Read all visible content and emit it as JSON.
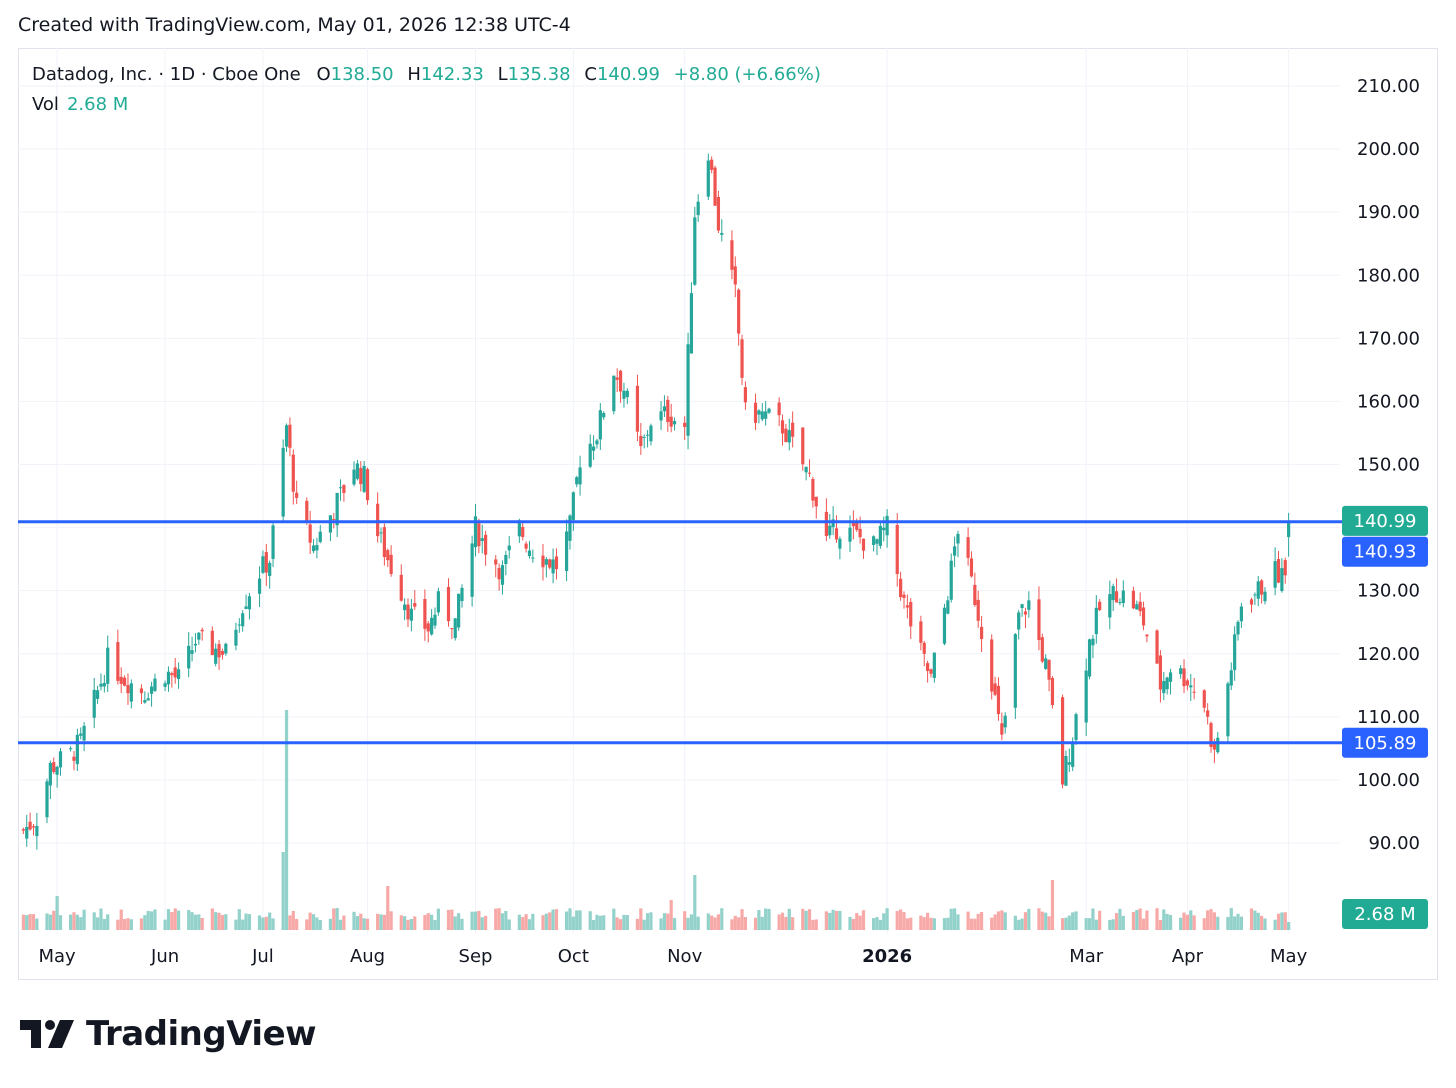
{
  "header": {
    "created_text": "Created with TradingView.com, May 01, 2026 12:38 UTC-4"
  },
  "legend": {
    "symbol": "Datadog, Inc. · 1D · Cboe One",
    "open_label": "O",
    "open": "138.50",
    "high_label": "H",
    "high": "142.33",
    "low_label": "L",
    "low": "135.38",
    "close_label": "C",
    "close": "140.99",
    "change": "+8.80 (+6.66%)",
    "vol_label": "Vol",
    "vol_value": "2.68 M"
  },
  "brand": {
    "name": "TradingView"
  },
  "colors": {
    "up": "#26a69a",
    "down": "#ef5350",
    "vol_up": "#93d1cb",
    "vol_down": "#f7a9a7",
    "hline": "#2962ff",
    "last_price": "#22ab94",
    "label_blue": "#2962ff",
    "grid": "#f0f3fa"
  },
  "chart_data": {
    "type": "candlestick",
    "symbol": "Datadog, Inc.",
    "interval": "1D",
    "exchange": "Cboe One",
    "y_ticks": [
      "210.00",
      "200.00",
      "190.00",
      "180.00",
      "170.00",
      "160.00",
      "150.00",
      "140.00",
      "130.00",
      "120.00",
      "110.00",
      "100.00",
      "90.00"
    ],
    "y_range": [
      84,
      214
    ],
    "x_ticks": [
      {
        "label": "May",
        "date": "2025-05-01"
      },
      {
        "label": "Jun",
        "date": "2025-06-02"
      },
      {
        "label": "Jul",
        "date": "2025-07-01"
      },
      {
        "label": "Aug",
        "date": "2025-08-01"
      },
      {
        "label": "Sep",
        "date": "2025-09-02"
      },
      {
        "label": "Oct",
        "date": "2025-10-01"
      },
      {
        "label": "Nov",
        "date": "2025-11-03"
      },
      {
        "label": "2026",
        "date": "2026-01-02",
        "bold": true
      },
      {
        "label": "Mar",
        "date": "2026-03-02"
      },
      {
        "label": "Apr",
        "date": "2026-04-01"
      },
      {
        "label": "May",
        "date": "2026-05-01"
      }
    ],
    "horizontal_lines": [
      {
        "value": 140.93,
        "label": "140.93"
      },
      {
        "value": 105.89,
        "label": "105.89"
      }
    ],
    "last_price": {
      "value": 140.99,
      "label": "140.99"
    },
    "last_volume": {
      "value": 2.68,
      "label": "2.68 M"
    },
    "volume_unit": "M",
    "closes": [
      {
        "date": "2025-04-21",
        "close": 92
      },
      {
        "date": "2025-04-25",
        "close": 94
      },
      {
        "date": "2025-04-29",
        "close": 102
      },
      {
        "date": "2025-05-05",
        "close": 104
      },
      {
        "date": "2025-05-08",
        "close": 106
      },
      {
        "date": "2025-05-13",
        "close": 114
      },
      {
        "date": "2025-05-16",
        "close": 119
      },
      {
        "date": "2025-05-21",
        "close": 116
      },
      {
        "date": "2025-05-27",
        "close": 114
      },
      {
        "date": "2025-06-02",
        "close": 117
      },
      {
        "date": "2025-06-06",
        "close": 116
      },
      {
        "date": "2025-06-11",
        "close": 122
      },
      {
        "date": "2025-06-16",
        "close": 121
      },
      {
        "date": "2025-06-20",
        "close": 120
      },
      {
        "date": "2025-06-25",
        "close": 128
      },
      {
        "date": "2025-06-30",
        "close": 133
      },
      {
        "date": "2025-07-03",
        "close": 135
      },
      {
        "date": "2025-07-08",
        "close": 156
      },
      {
        "date": "2025-07-11",
        "close": 143
      },
      {
        "date": "2025-07-16",
        "close": 137
      },
      {
        "date": "2025-07-21",
        "close": 142
      },
      {
        "date": "2025-07-24",
        "close": 145
      },
      {
        "date": "2025-07-28",
        "close": 150
      },
      {
        "date": "2025-07-31",
        "close": 148
      },
      {
        "date": "2025-08-04",
        "close": 139
      },
      {
        "date": "2025-08-07",
        "close": 135
      },
      {
        "date": "2025-08-11",
        "close": 130
      },
      {
        "date": "2025-08-14",
        "close": 126
      },
      {
        "date": "2025-08-19",
        "close": 124
      },
      {
        "date": "2025-08-22",
        "close": 128
      },
      {
        "date": "2025-08-27",
        "close": 125
      },
      {
        "date": "2025-09-02",
        "close": 140
      },
      {
        "date": "2025-09-05",
        "close": 137
      },
      {
        "date": "2025-09-10",
        "close": 133
      },
      {
        "date": "2025-09-15",
        "close": 140
      },
      {
        "date": "2025-09-18",
        "close": 137
      },
      {
        "date": "2025-09-23",
        "close": 135
      },
      {
        "date": "2025-09-26",
        "close": 134
      },
      {
        "date": "2025-09-30",
        "close": 140
      },
      {
        "date": "2025-10-03",
        "close": 151
      },
      {
        "date": "2025-10-08",
        "close": 155
      },
      {
        "date": "2025-10-13",
        "close": 165
      },
      {
        "date": "2025-10-16",
        "close": 162
      },
      {
        "date": "2025-10-21",
        "close": 152
      },
      {
        "date": "2025-10-24",
        "close": 157
      },
      {
        "date": "2025-10-29",
        "close": 158
      },
      {
        "date": "2025-11-03",
        "close": 156
      },
      {
        "date": "2025-11-06",
        "close": 190
      },
      {
        "date": "2025-11-10",
        "close": 200
      },
      {
        "date": "2025-11-13",
        "close": 188
      },
      {
        "date": "2025-11-18",
        "close": 177
      },
      {
        "date": "2025-11-21",
        "close": 158
      },
      {
        "date": "2025-11-26",
        "close": 158
      },
      {
        "date": "2025-12-02",
        "close": 156
      },
      {
        "date": "2025-12-05",
        "close": 153
      },
      {
        "date": "2025-12-10",
        "close": 148
      },
      {
        "date": "2025-12-15",
        "close": 138
      },
      {
        "date": "2025-12-18",
        "close": 140
      },
      {
        "date": "2025-12-23",
        "close": 139
      },
      {
        "date": "2025-12-29",
        "close": 137
      },
      {
        "date": "2026-01-02",
        "close": 140
      },
      {
        "date": "2026-01-07",
        "close": 128
      },
      {
        "date": "2026-01-12",
        "close": 120
      },
      {
        "date": "2026-01-15",
        "close": 116
      },
      {
        "date": "2026-01-20",
        "close": 130
      },
      {
        "date": "2026-01-23",
        "close": 140
      },
      {
        "date": "2026-01-28",
        "close": 129
      },
      {
        "date": "2026-02-02",
        "close": 116
      },
      {
        "date": "2026-02-05",
        "close": 106
      },
      {
        "date": "2026-02-10",
        "close": 126
      },
      {
        "date": "2026-02-13",
        "close": 128
      },
      {
        "date": "2026-02-18",
        "close": 118
      },
      {
        "date": "2026-02-23",
        "close": 100
      },
      {
        "date": "2026-02-26",
        "close": 107
      },
      {
        "date": "2026-03-03",
        "close": 122
      },
      {
        "date": "2026-03-06",
        "close": 127
      },
      {
        "date": "2026-03-11",
        "close": 130
      },
      {
        "date": "2026-03-16",
        "close": 128
      },
      {
        "date": "2026-03-19",
        "close": 125
      },
      {
        "date": "2026-03-24",
        "close": 115
      },
      {
        "date": "2026-03-27",
        "close": 118
      },
      {
        "date": "2026-04-01",
        "close": 116
      },
      {
        "date": "2026-04-06",
        "close": 112
      },
      {
        "date": "2026-04-09",
        "close": 104
      },
      {
        "date": "2026-04-14",
        "close": 118
      },
      {
        "date": "2026-04-17",
        "close": 128
      },
      {
        "date": "2026-04-22",
        "close": 130
      },
      {
        "date": "2026-04-27",
        "close": 133
      },
      {
        "date": "2026-04-30",
        "close": 132
      },
      {
        "date": "2026-05-01",
        "close": 140.99
      }
    ]
  }
}
